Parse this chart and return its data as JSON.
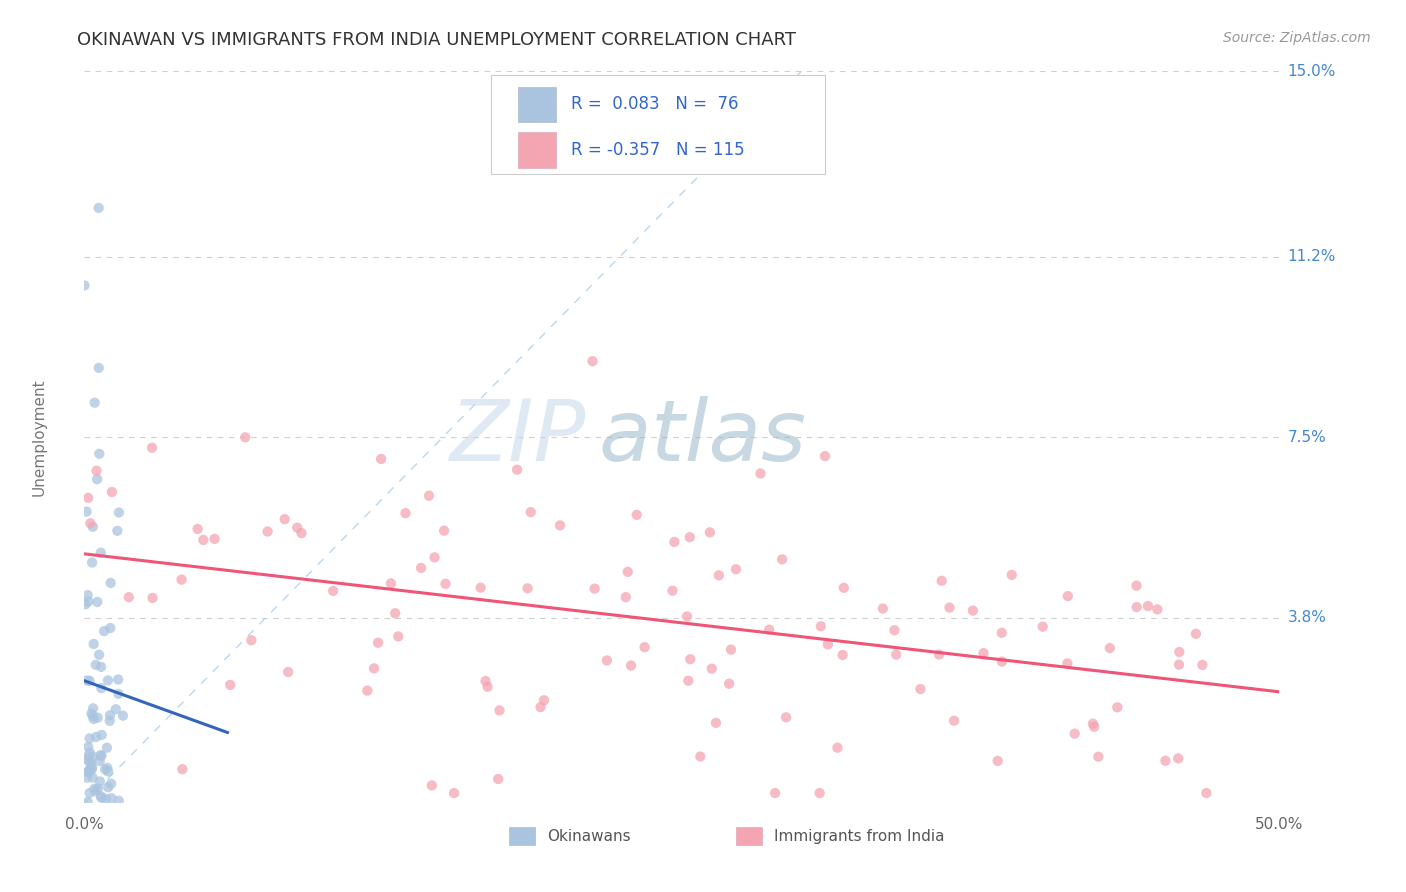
{
  "title": "OKINAWAN VS IMMIGRANTS FROM INDIA UNEMPLOYMENT CORRELATION CHART",
  "source": "Source: ZipAtlas.com",
  "ylabel": "Unemployment",
  "xlim": [
    0.0,
    0.5
  ],
  "ylim": [
    0.0,
    0.15
  ],
  "ytick_positions": [
    0.0,
    0.038,
    0.075,
    0.112,
    0.15
  ],
  "ytick_labels": [
    "",
    "3.8%",
    "7.5%",
    "11.2%",
    "15.0%"
  ],
  "xtick_positions": [
    0.0,
    0.1,
    0.2,
    0.3,
    0.4,
    0.5
  ],
  "xtick_labels": [
    "0.0%",
    "",
    "",
    "",
    "",
    "50.0%"
  ],
  "background_color": "#ffffff",
  "grid_color": "#d0d0d0",
  "diagonal_color": "#aaccee",
  "watermark_zip": "ZIP",
  "watermark_atlas": "atlas",
  "watermark_color_zip": "#c8d8e8",
  "watermark_color_atlas": "#a0b8cc",
  "legend_r1": "0.083",
  "legend_n1": "76",
  "legend_r2": "-0.357",
  "legend_n2": "115",
  "okinawan_color": "#aac4df",
  "india_color": "#f4a5b2",
  "okinawan_line_color": "#3366bb",
  "india_line_color": "#ee5577",
  "tick_color_right": "#4488cc",
  "tick_color_bottom": "#666666",
  "title_color": "#333333",
  "axis_label_color": "#777777",
  "source_color": "#999999",
  "legend_text_color": "#3366cc",
  "legend_label1": "Okinawans",
  "legend_label2": "Immigrants from India",
  "legend_label_color": "#555555",
  "scatter_size": 55,
  "scatter_alpha": 0.75,
  "seed": 42,
  "N_okinawan": 76,
  "N_india": 115
}
